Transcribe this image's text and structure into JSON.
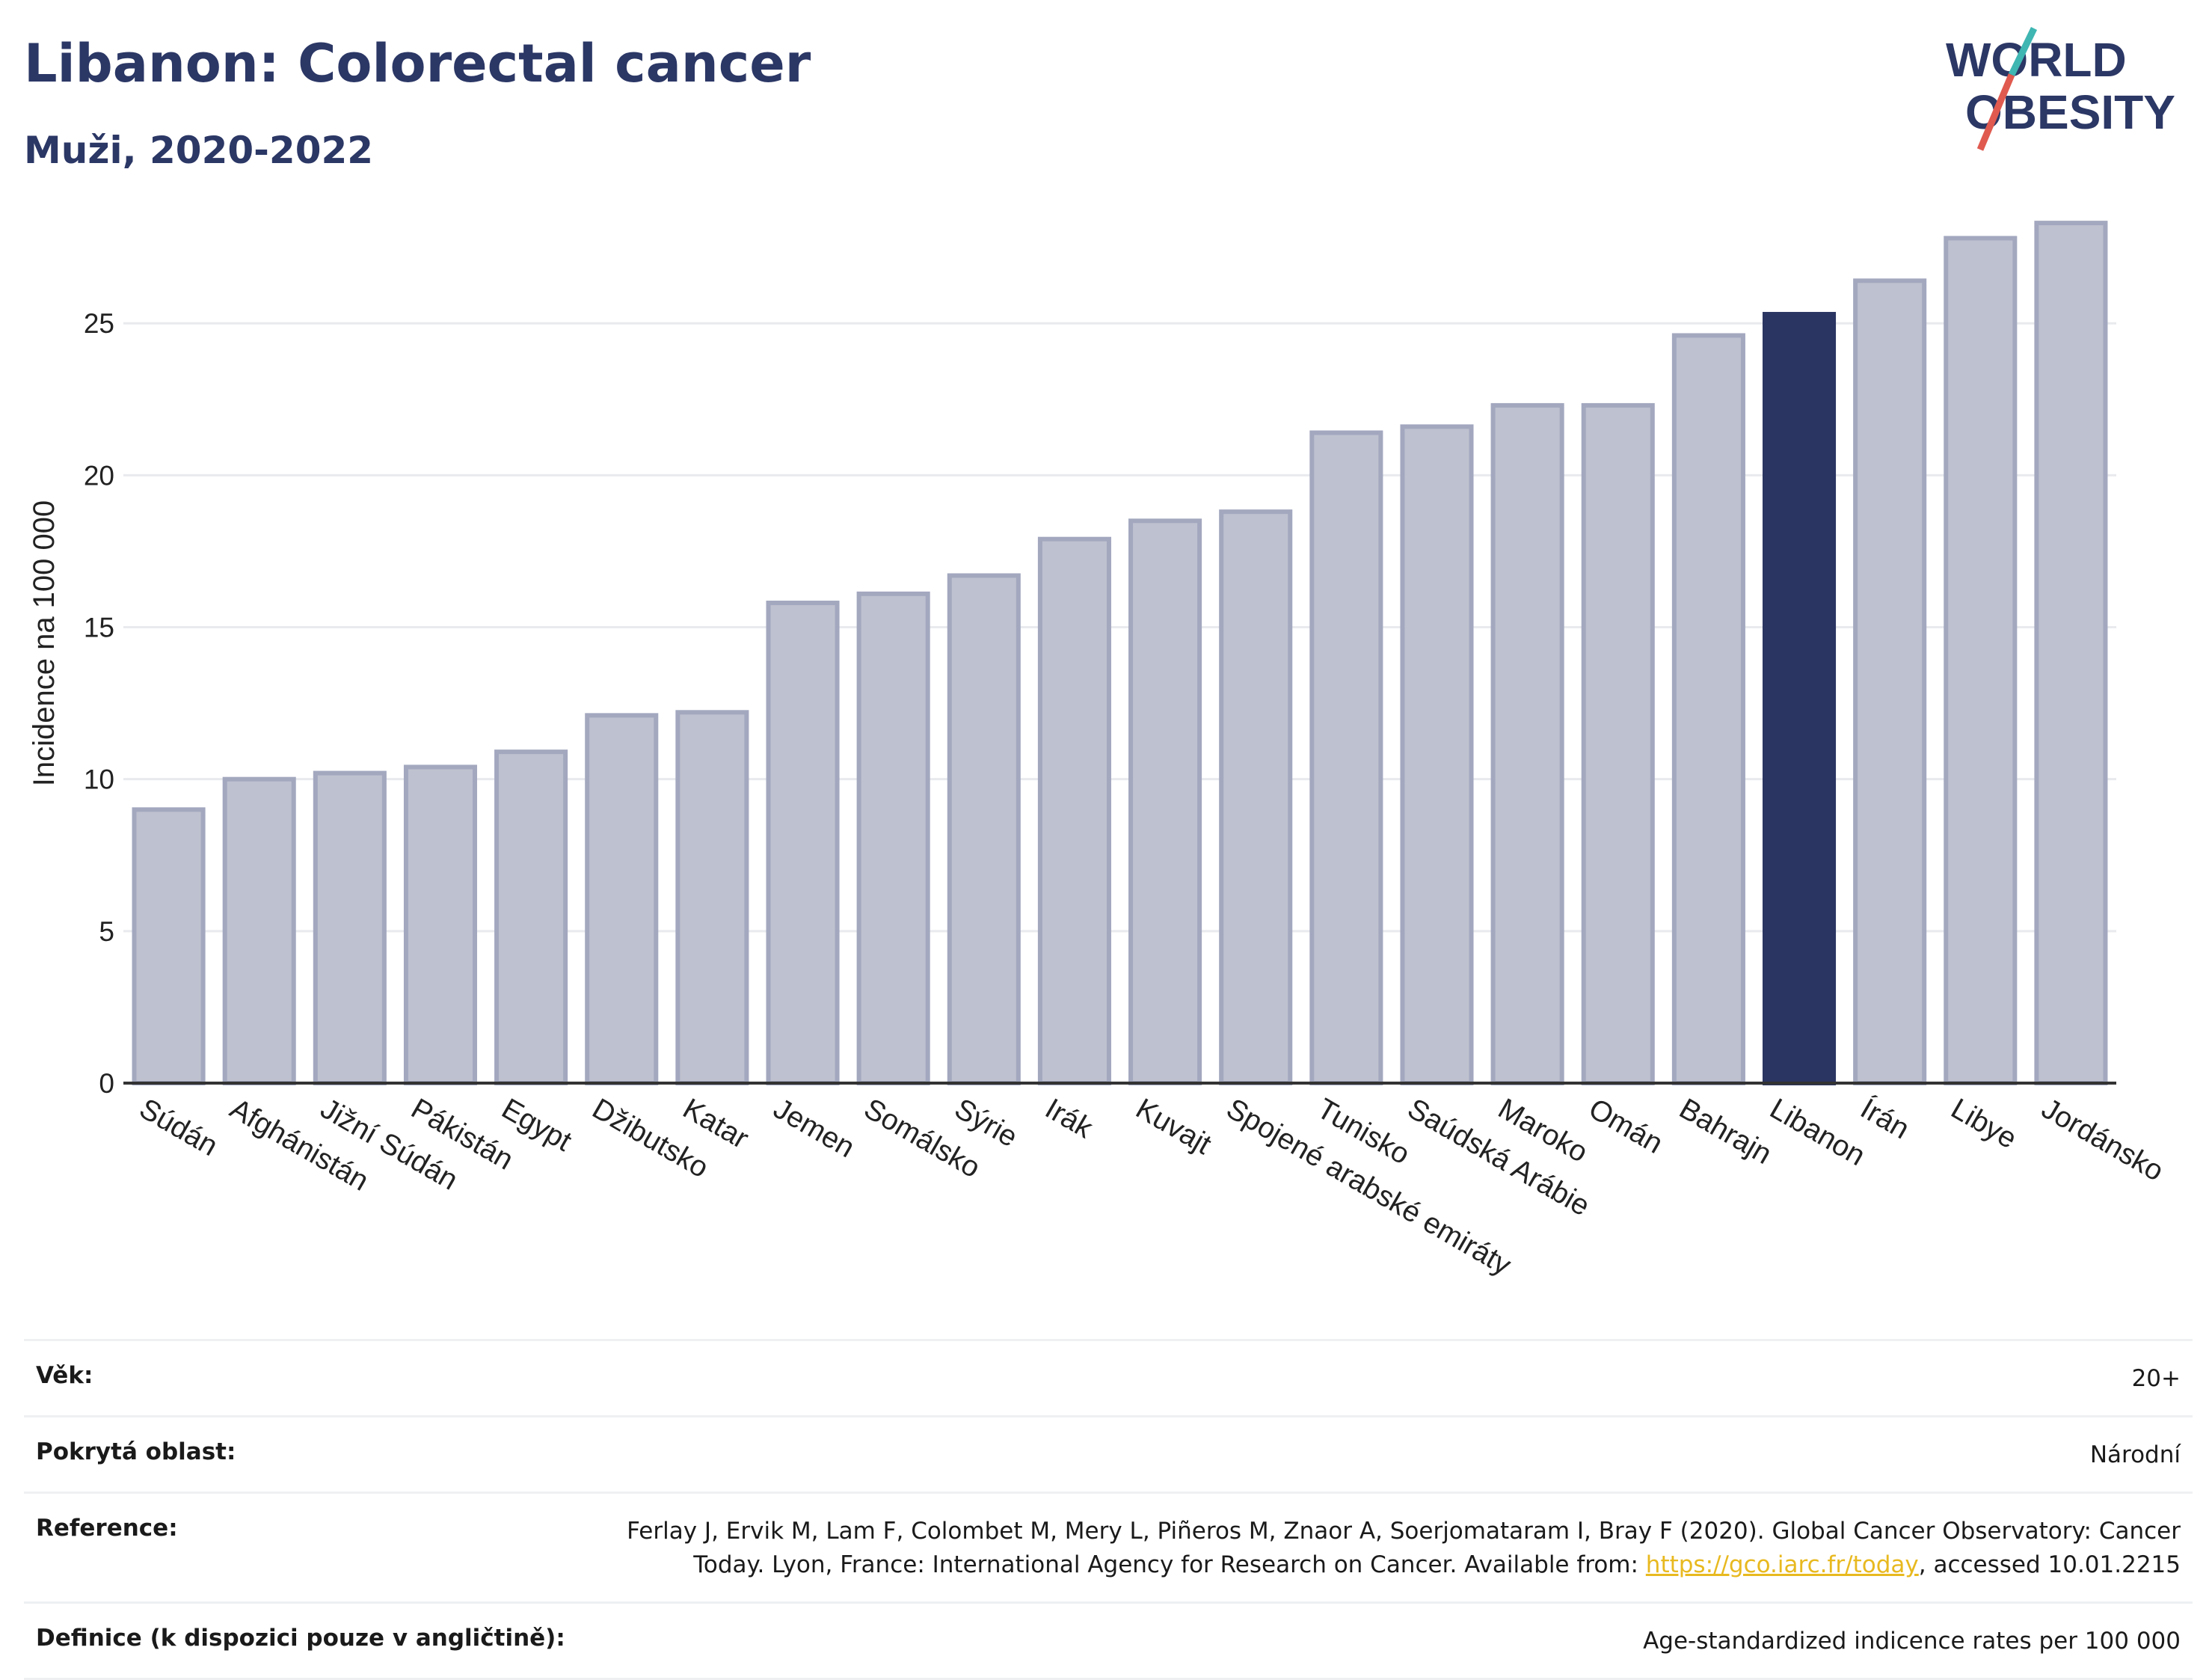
{
  "header": {
    "title": "Libanon: Colorectal cancer",
    "subtitle": "Muži, 2020-2022"
  },
  "logo": {
    "line1": "WORLD",
    "line2": "OBESITY"
  },
  "chart_data": {
    "type": "bar",
    "ylabel": "Incidence na 100 000",
    "ylim": [
      0,
      28.5
    ],
    "yticks": [
      0,
      5,
      10,
      15,
      20,
      25
    ],
    "grid": true,
    "categories": [
      "Súdán",
      "Afghánistán",
      "Jižní Súdán",
      "Pákistán",
      "Egypt",
      "Džibutsko",
      "Katar",
      "Jemen",
      "Somálsko",
      "Sýrie",
      "Irák",
      "Kuvajt",
      "Spojené arabské emiráty",
      "Tunisko",
      "Saúdská Arábie",
      "Maroko",
      "Omán",
      "Bahrajn",
      "Libanon",
      "Írán",
      "Libye",
      "Jordánsko"
    ],
    "values": [
      9.0,
      10.0,
      10.2,
      10.4,
      10.9,
      12.1,
      12.2,
      15.8,
      16.1,
      16.7,
      17.9,
      18.5,
      18.8,
      21.4,
      21.6,
      22.3,
      22.3,
      24.6,
      25.3,
      26.4,
      27.8,
      28.3
    ],
    "highlight": "Libanon",
    "colors": {
      "bar": "#bec1cf",
      "bar_border": "#a3a8bf",
      "highlight": "#2b3562"
    }
  },
  "meta": {
    "age_label": "Věk:",
    "age_value": "20+",
    "area_label": "Pokrytá oblast:",
    "area_value": "Národní",
    "ref_label": "Reference:",
    "ref_line1": "Ferlay J, Ervik M, Lam F, Colombet M, Mery L, Piñeros M, Znaor A, Soerjomataram I, Bray F (2020). Global Cancer Observatory: Cancer",
    "ref_line2_pre": "Today. Lyon, France: International Agency for Research on Cancer. Available from:",
    "ref_link": "https://gco.iarc.fr/today",
    "ref_line2_post": ", accessed 10.01.2215",
    "def_label": "Definice (k dispozici pouze v angličtině):",
    "def_value": "Age-standardized indicence rates per 100 000"
  }
}
